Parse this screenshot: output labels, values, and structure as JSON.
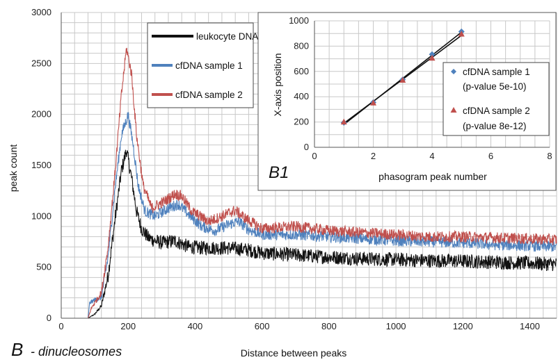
{
  "chart_data": [
    {
      "type": "line",
      "panel_label": "B",
      "panel_subtitle": "- dinucleosomes",
      "xlabel": "Distance between peaks",
      "ylabel": "peak count",
      "xlim": [
        0,
        1480
      ],
      "ylim": [
        0,
        3000
      ],
      "xticks": [
        0,
        200,
        400,
        600,
        800,
        1000,
        1200,
        1400
      ],
      "yticks": [
        0,
        500,
        1000,
        1500,
        2000,
        2500,
        3000
      ],
      "grid": true,
      "legend_position": "top-center",
      "series": [
        {
          "name": "leukocyte DNA",
          "color": "#111111",
          "noise": 70,
          "points": [
            [
              0,
              0
            ],
            [
              80,
              0
            ],
            [
              100,
              40
            ],
            [
              120,
              120
            ],
            [
              140,
              420
            ],
            [
              160,
              950
            ],
            [
              180,
              1450
            ],
            [
              195,
              1650
            ],
            [
              210,
              1380
            ],
            [
              225,
              1050
            ],
            [
              240,
              880
            ],
            [
              260,
              790
            ],
            [
              280,
              760
            ],
            [
              300,
              740
            ],
            [
              340,
              760
            ],
            [
              380,
              700
            ],
            [
              420,
              690
            ],
            [
              500,
              690
            ],
            [
              560,
              670
            ],
            [
              600,
              640
            ],
            [
              700,
              620
            ],
            [
              800,
              600
            ],
            [
              900,
              585
            ],
            [
              1000,
              575
            ],
            [
              1100,
              565
            ],
            [
              1200,
              560
            ],
            [
              1300,
              550
            ],
            [
              1400,
              540
            ],
            [
              1480,
              530
            ]
          ]
        },
        {
          "name": "cfDNA sample 1",
          "color": "#4f81bd",
          "noise": 55,
          "points": [
            [
              0,
              0
            ],
            [
              80,
              0
            ],
            [
              85,
              150
            ],
            [
              100,
              180
            ],
            [
              120,
              200
            ],
            [
              140,
              600
            ],
            [
              160,
              1250
            ],
            [
              180,
              1800
            ],
            [
              200,
              2000
            ],
            [
              215,
              1700
            ],
            [
              230,
              1300
            ],
            [
              250,
              1050
            ],
            [
              280,
              1000
            ],
            [
              320,
              1080
            ],
            [
              350,
              1120
            ],
            [
              380,
              1020
            ],
            [
              420,
              900
            ],
            [
              460,
              860
            ],
            [
              500,
              920
            ],
            [
              530,
              950
            ],
            [
              560,
              870
            ],
            [
              600,
              820
            ],
            [
              700,
              820
            ],
            [
              800,
              800
            ],
            [
              900,
              780
            ],
            [
              1000,
              760
            ],
            [
              1100,
              750
            ],
            [
              1200,
              740
            ],
            [
              1300,
              720
            ],
            [
              1400,
              710
            ],
            [
              1480,
              700
            ]
          ]
        },
        {
          "name": "cfDNA sample 2",
          "color": "#c0504d",
          "noise": 55,
          "points": [
            [
              0,
              0
            ],
            [
              80,
              0
            ],
            [
              90,
              100
            ],
            [
              100,
              150
            ],
            [
              120,
              250
            ],
            [
              140,
              700
            ],
            [
              160,
              1400
            ],
            [
              180,
              2200
            ],
            [
              195,
              2650
            ],
            [
              210,
              2400
            ],
            [
              225,
              1800
            ],
            [
              245,
              1300
            ],
            [
              270,
              1080
            ],
            [
              310,
              1150
            ],
            [
              340,
              1220
            ],
            [
              360,
              1200
            ],
            [
              390,
              1050
            ],
            [
              440,
              950
            ],
            [
              480,
              1000
            ],
            [
              520,
              1060
            ],
            [
              550,
              980
            ],
            [
              600,
              880
            ],
            [
              700,
              900
            ],
            [
              800,
              860
            ],
            [
              900,
              840
            ],
            [
              1000,
              820
            ],
            [
              1100,
              800
            ],
            [
              1200,
              800
            ],
            [
              1300,
              790
            ],
            [
              1400,
              780
            ],
            [
              1480,
              770
            ]
          ]
        }
      ]
    },
    {
      "type": "scatter",
      "panel_label": "B1",
      "xlabel": "phasogram peak number",
      "ylabel": "X-axis position",
      "xlim": [
        0,
        8
      ],
      "ylim": [
        0,
        1000
      ],
      "xticks": [
        0,
        2,
        4,
        6,
        8
      ],
      "yticks": [
        0,
        200,
        400,
        600,
        800,
        1000
      ],
      "grid": true,
      "legend_position": "right",
      "series": [
        {
          "name": "cfDNA sample 1",
          "name_line2": "(p-value 5e-10)",
          "color": "#4f81bd",
          "marker": "diamond",
          "x": [
            1,
            2,
            3,
            4,
            5
          ],
          "y": [
            195,
            355,
            535,
            735,
            915
          ],
          "trend": [
            [
              1,
              180
            ],
            [
              5,
              910
            ]
          ]
        },
        {
          "name": "cfDNA sample 2",
          "name_line2": "(p-value 8e-12)",
          "color": "#c0504d",
          "marker": "triangle",
          "x": [
            1,
            2,
            3,
            4,
            5
          ],
          "y": [
            200,
            350,
            530,
            705,
            895
          ],
          "trend": [
            [
              1,
              190
            ],
            [
              5,
              885
            ]
          ]
        }
      ]
    }
  ]
}
